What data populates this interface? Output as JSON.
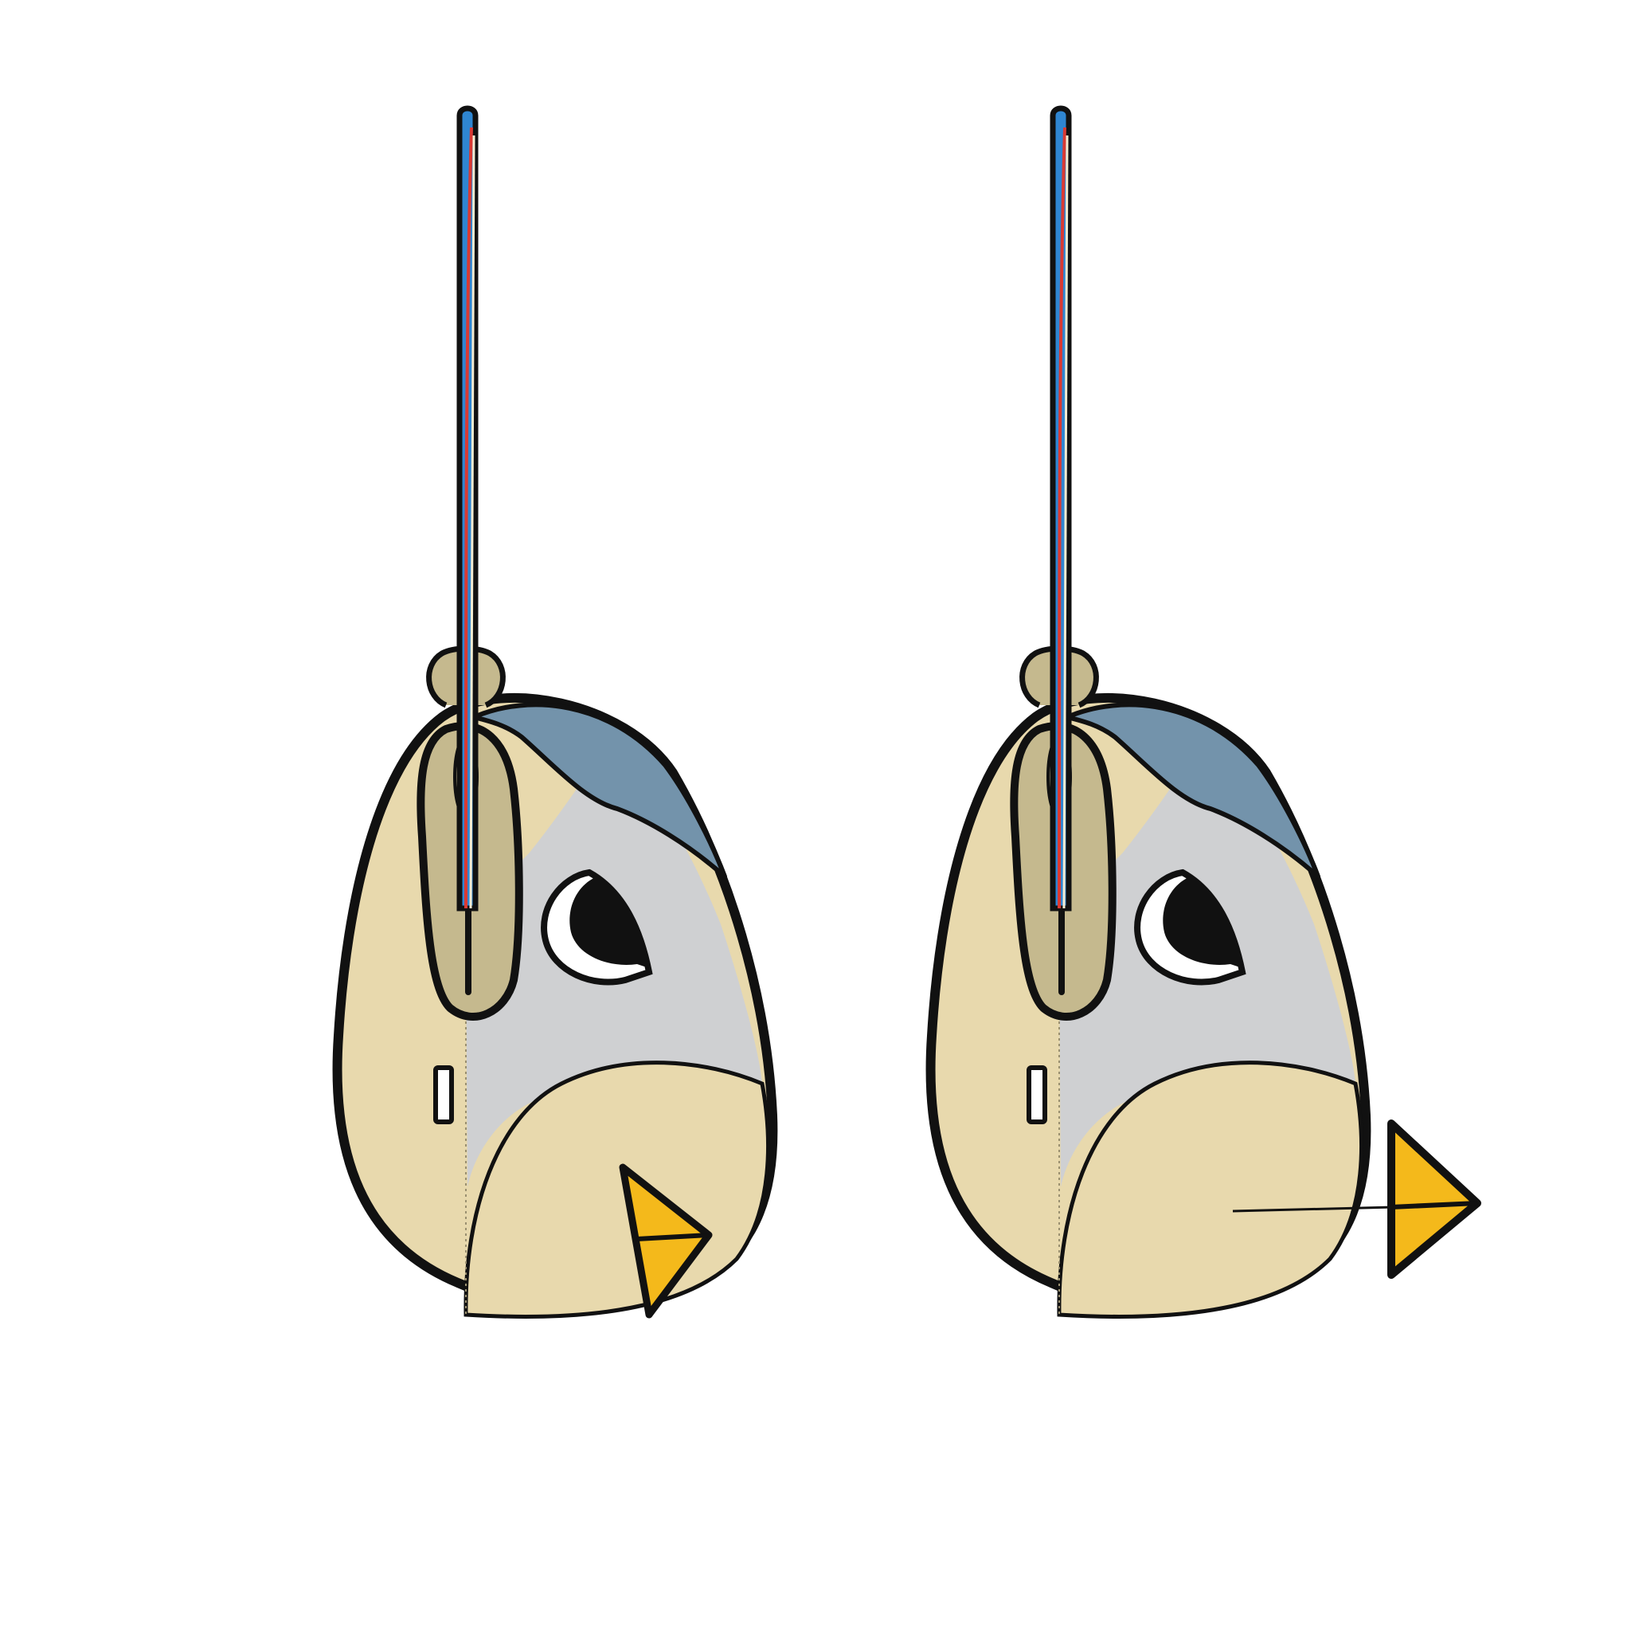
{
  "colors": {
    "background": "#ffffff",
    "outline": "#111111",
    "body": "#e8d9ad",
    "body_shade": "#dfcf9f",
    "flap": "#c5b98e",
    "head_cap": "#7393ab",
    "face": "#cfd0d2",
    "beak": "#f4b91b",
    "strap_blue": "#2f86d2",
    "strap_red": "#d93a34",
    "strap_cream": "#f5ecd2",
    "label": "#ffffff"
  },
  "icons": {
    "left_bag": "bird-shaped-bag-icon",
    "right_bag": "bird-shaped-bag-icon",
    "detached_beak": "beak-icon",
    "strap": "strap-icon",
    "zipper": "zipper-pull-icon"
  },
  "variants": [
    {
      "id": "left",
      "beak": "attached"
    },
    {
      "id": "right",
      "beak": "detached-on-cord"
    }
  ]
}
